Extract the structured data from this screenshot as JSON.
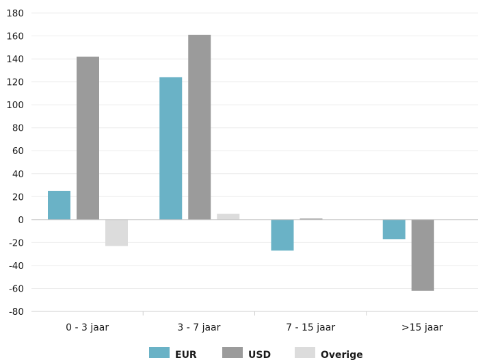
{
  "chart_data": {
    "type": "bar",
    "categories": [
      "0 - 3 jaar",
      "3 - 7 jaar",
      "7 - 15 jaar",
      ">15 jaar"
    ],
    "series": [
      {
        "name": "EUR",
        "values": [
          25,
          124,
          -27,
          -17
        ],
        "color": "#6ab2c6"
      },
      {
        "name": "USD",
        "values": [
          142,
          161,
          0.5,
          -62
        ],
        "color": "#9b9b9b"
      },
      {
        "name": "Overige",
        "values": [
          -23,
          5,
          0,
          0
        ],
        "color": "#dcdcdc"
      }
    ],
    "ylim": [
      -80,
      180
    ],
    "yticks": [
      180,
      160,
      140,
      120,
      100,
      80,
      60,
      40,
      20,
      0,
      -20,
      -40,
      -60,
      -80
    ],
    "grid": true,
    "legend": "bottom-center"
  }
}
